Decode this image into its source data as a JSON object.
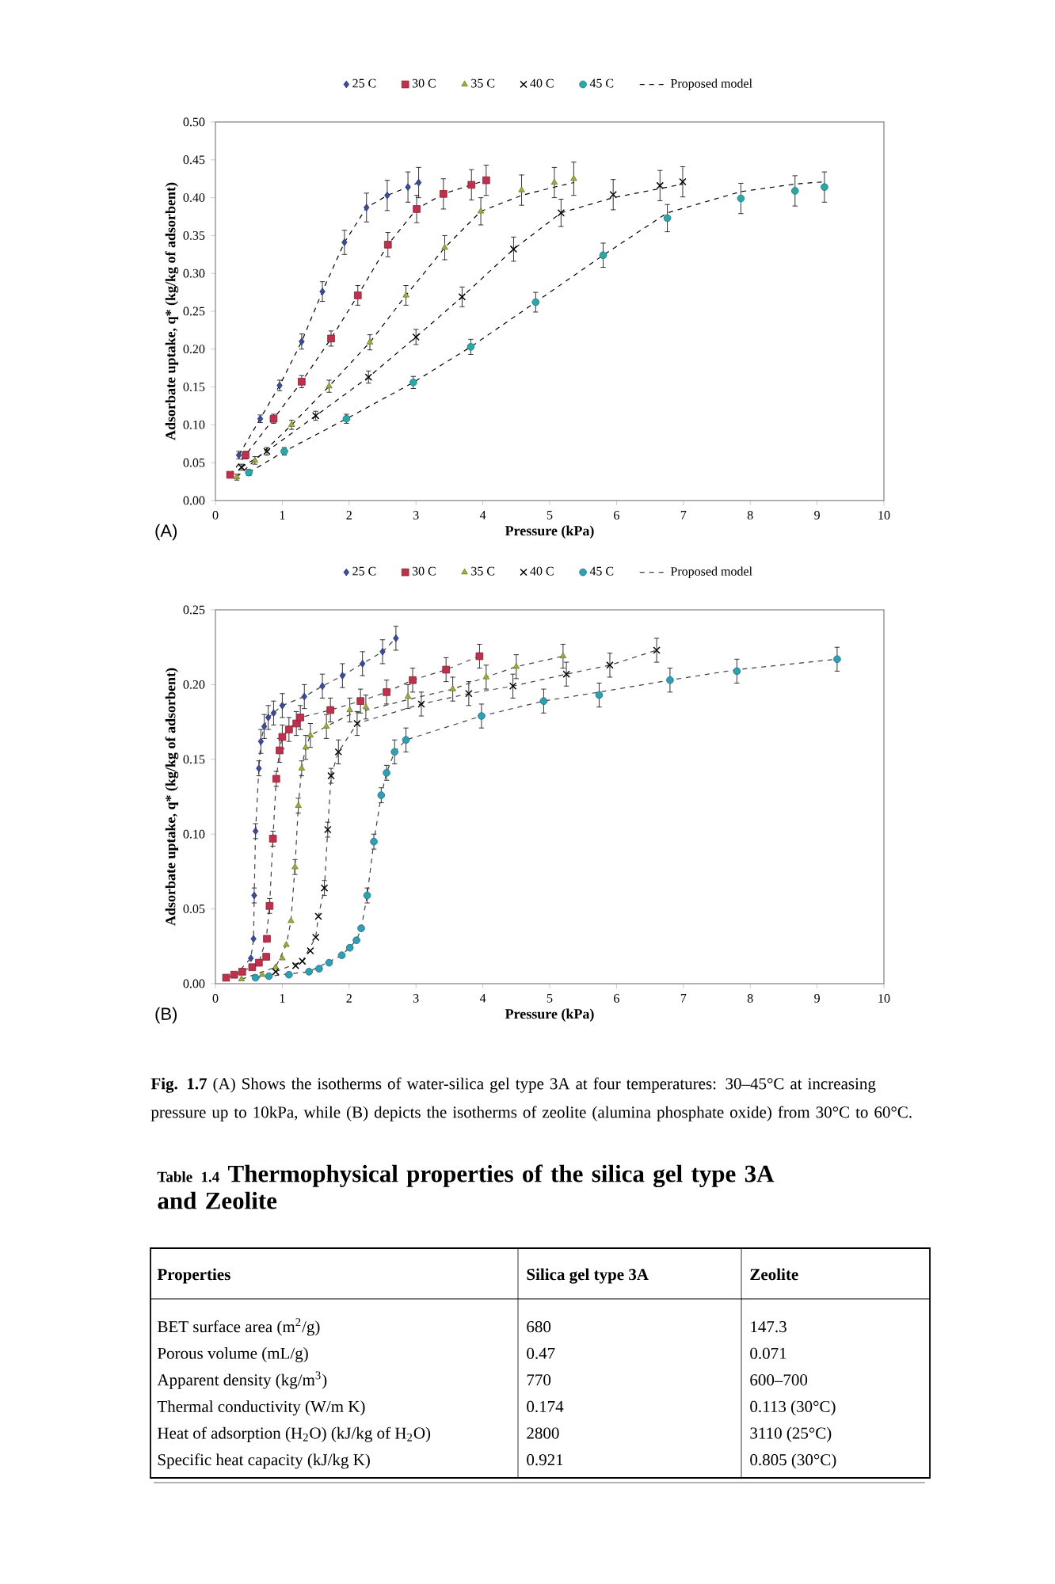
{
  "chart_data": [
    {
      "type": "scatter",
      "xlabel": "Pressure (kPa)",
      "ylabel": "Adsorbate uptake, q* (kg/kg of adsorbent)",
      "xlim": [
        0,
        10
      ],
      "ylim": [
        0,
        0.5
      ],
      "xticks": [
        0,
        1,
        2,
        3,
        4,
        5,
        6,
        7,
        8,
        9,
        10
      ],
      "yticks": [
        {
          "value": 0,
          "label": "0.00"
        },
        {
          "value": 0.05,
          "label": "0.05"
        },
        {
          "value": 0.1,
          "label": "0.10"
        },
        {
          "value": 0.15,
          "label": "0.15"
        },
        {
          "value": 0.2,
          "label": "0.20"
        },
        {
          "value": 0.25,
          "label": "0.25"
        },
        {
          "value": 0.3,
          "label": "0.30"
        },
        {
          "value": 0.35,
          "label": "0.35"
        },
        {
          "value": 0.4,
          "label": "0.40"
        },
        {
          "value": 0.45,
          "label": "0.45"
        },
        {
          "value": 0.5,
          "label": "0.50"
        }
      ],
      "legend": "top",
      "annotations": [
        "(A)"
      ],
      "series": [
        {
          "name": "25 C",
          "type": "scatter",
          "color": "#3b4a9c",
          "marker": "diamond",
          "x": [
            0.35,
            0.67,
            0.96,
            1.29,
            1.6,
            1.93,
            2.26,
            2.57,
            2.88,
            3.04
          ],
          "values": [
            0.06,
            0.108,
            0.152,
            0.21,
            0.276,
            0.341,
            0.387,
            0.403,
            0.414,
            0.42
          ],
          "errors": [
            0.005,
            0.005,
            0.007,
            0.01,
            0.013,
            0.016,
            0.019,
            0.02,
            0.02,
            0.02
          ]
        },
        {
          "name": "30 C",
          "type": "scatter",
          "color": "#c0304a",
          "marker": "square",
          "x": [
            0.22,
            0.45,
            0.87,
            1.29,
            1.73,
            2.13,
            2.58,
            3.01,
            3.41,
            3.83,
            4.05
          ],
          "values": [
            0.034,
            0.06,
            0.108,
            0.157,
            0.214,
            0.271,
            0.338,
            0.385,
            0.405,
            0.417,
            0.423
          ],
          "errors": [
            null,
            0.005,
            0.006,
            0.008,
            0.01,
            0.013,
            0.016,
            0.018,
            0.02,
            0.02,
            0.02
          ]
        },
        {
          "name": "35 C",
          "type": "scatter",
          "color": "#9aae3e",
          "marker": "triangle",
          "x": [
            0.32,
            0.59,
            1.14,
            1.7,
            2.31,
            2.85,
            3.43,
            3.97,
            4.58,
            5.07,
            5.36
          ],
          "values": [
            0.031,
            0.053,
            0.1,
            0.151,
            0.209,
            0.271,
            0.334,
            0.382,
            0.41,
            0.42,
            0.425
          ],
          "errors": [
            0.004,
            0.005,
            0.006,
            0.008,
            0.01,
            0.013,
            0.016,
            0.018,
            0.02,
            0.02,
            0.022
          ]
        },
        {
          "name": "40 C",
          "type": "scatter",
          "color": "#000000",
          "marker": "cross",
          "x": [
            0.39,
            0.77,
            1.5,
            2.29,
            3.0,
            3.69,
            4.46,
            5.17,
            5.95,
            6.65,
            6.99
          ],
          "values": [
            0.044,
            0.065,
            0.112,
            0.163,
            0.216,
            0.269,
            0.332,
            0.38,
            0.404,
            0.416,
            0.421
          ],
          "errors": [
            0.004,
            0.005,
            0.006,
            0.008,
            0.01,
            0.013,
            0.016,
            0.018,
            0.02,
            0.02,
            0.02
          ]
        },
        {
          "name": "45 C",
          "type": "scatter",
          "color": "#2aa8a8",
          "marker": "circle",
          "x": [
            0.5,
            1.03,
            1.96,
            2.96,
            3.82,
            4.79,
            5.8,
            6.76,
            7.86,
            8.67,
            9.11
          ],
          "values": [
            0.037,
            0.065,
            0.108,
            0.156,
            0.203,
            0.262,
            0.324,
            0.373,
            0.399,
            0.409,
            0.414
          ],
          "errors": [
            0.004,
            0.005,
            0.006,
            0.008,
            0.01,
            0.013,
            0.016,
            0.018,
            0.02,
            0.02,
            0.02
          ]
        },
        {
          "name": "Proposed model",
          "type": "line",
          "color": "#000000",
          "marker": "none",
          "line_style": "dashed",
          "x": [
            0.35,
            0.67,
            0.96,
            1.29,
            1.6,
            1.93,
            2.26,
            2.57,
            2.88,
            3.04
          ],
          "values": [
            0.06,
            0.108,
            0.152,
            0.21,
            0.276,
            0.341,
            0.387,
            0.403,
            0.414,
            0.42
          ]
        },
        {
          "type": "line",
          "color": "#000000",
          "marker": "none",
          "line_style": "dashed",
          "x": [
            0.22,
            0.45,
            0.87,
            1.29,
            1.73,
            2.13,
            2.58,
            3.01,
            3.41,
            3.83,
            4.05
          ],
          "values": [
            0.034,
            0.06,
            0.108,
            0.157,
            0.214,
            0.271,
            0.338,
            0.385,
            0.405,
            0.417,
            0.423
          ]
        },
        {
          "type": "line",
          "color": "#000000",
          "marker": "none",
          "line_style": "dashed",
          "x": [
            0.32,
            0.59,
            1.14,
            1.7,
            2.31,
            2.85,
            3.43,
            3.97,
            4.58,
            5.07,
            5.36
          ],
          "values": [
            0.031,
            0.053,
            0.1,
            0.151,
            0.209,
            0.271,
            0.334,
            0.382,
            0.403,
            0.414,
            0.42
          ]
        },
        {
          "type": "line",
          "color": "#000000",
          "marker": "none",
          "line_style": "dashed",
          "x": [
            0.39,
            0.77,
            1.5,
            2.29,
            3.0,
            3.69,
            4.46,
            5.17,
            5.95,
            6.65,
            6.99
          ],
          "values": [
            0.044,
            0.065,
            0.112,
            0.163,
            0.216,
            0.269,
            0.332,
            0.38,
            0.4,
            0.412,
            0.418
          ]
        },
        {
          "type": "line",
          "color": "#000000",
          "marker": "none",
          "line_style": "dashed",
          "x": [
            0.5,
            1.03,
            1.96,
            2.96,
            3.82,
            4.79,
            5.8,
            6.76,
            7.86,
            8.67,
            9.11
          ],
          "values": [
            0.037,
            0.065,
            0.108,
            0.156,
            0.203,
            0.262,
            0.324,
            0.38,
            0.408,
            0.418,
            0.421
          ]
        }
      ]
    },
    {
      "type": "scatter",
      "xlabel": "Pressure (kPa)",
      "ylabel": "Adsorbate uptake, q* (kg/kg of adsorbent)",
      "xlim": [
        0,
        10
      ],
      "ylim": [
        0,
        0.25
      ],
      "xticks": [
        0,
        1,
        2,
        3,
        4,
        5,
        6,
        7,
        8,
        9,
        10
      ],
      "yticks": [
        {
          "value": 0,
          "label": "0.00"
        },
        {
          "value": 0.05,
          "label": "0.05"
        },
        {
          "value": 0.1,
          "label": "0.10"
        },
        {
          "value": 0.15,
          "label": "0.15"
        },
        {
          "value": 0.2,
          "label": "0.20"
        },
        {
          "value": 0.25,
          "label": "0.25"
        }
      ],
      "legend": "top",
      "annotations": [
        "(B)",
        "**Fig. 1.7** (A) Shows the isotherms of water-silica gel type 3A at four temperatures: 30–45°C at increasing pressure up to 10kPa, while (B) depicts the isotherms of zeolite (alumina phosphate oxide) from 30°C to 60°C."
      ],
      "series": [
        {
          "name": "25 C",
          "type": "scatter",
          "color": "#3b4a9c",
          "marker": "diamond",
          "x": [
            0.53,
            0.57,
            0.58,
            0.6,
            0.65,
            0.68,
            0.73,
            0.79,
            0.87,
            1.0,
            1.33,
            1.6,
            1.9,
            2.2,
            2.5,
            2.7
          ],
          "values": [
            0.017,
            0.03,
            0.059,
            0.102,
            0.144,
            0.162,
            0.172,
            0.178,
            0.181,
            0.186,
            0.192,
            0.199,
            0.206,
            0.214,
            0.222,
            0.231
          ],
          "errors": [
            null,
            null,
            0.005,
            0.005,
            0.005,
            0.008,
            0.008,
            0.008,
            0.008,
            0.008,
            0.008,
            0.008,
            0.008,
            0.008,
            0.008,
            0.008
          ]
        },
        {
          "name": "30 C",
          "type": "scatter",
          "color": "#c0304a",
          "marker": "square",
          "x": [
            0.16,
            0.28,
            0.4,
            0.55,
            0.65,
            0.76,
            0.77,
            0.81,
            0.86,
            0.91,
            0.96,
            1.0,
            1.1,
            1.21,
            1.27,
            1.72,
            2.17,
            2.56,
            2.95,
            3.45,
            3.95
          ],
          "values": [
            0.004,
            0.006,
            0.008,
            0.011,
            0.014,
            0.018,
            0.03,
            0.052,
            0.097,
            0.137,
            0.156,
            0.165,
            0.17,
            0.174,
            0.178,
            0.183,
            0.189,
            0.195,
            0.203,
            0.21,
            0.219
          ],
          "errors": [
            null,
            null,
            null,
            null,
            null,
            null,
            null,
            0.005,
            0.005,
            0.005,
            0.008,
            0.008,
            0.008,
            0.008,
            0.008,
            0.008,
            0.008,
            0.008,
            0.008,
            0.008,
            0.008
          ]
        },
        {
          "name": "35 C",
          "type": "scatter",
          "color": "#9aae3e",
          "marker": "triangle",
          "x": [
            0.39,
            0.7,
            0.9,
            1.0,
            1.06,
            1.13,
            1.19,
            1.24,
            1.29,
            1.35,
            1.42,
            1.66,
            2.01,
            2.25,
            2.88,
            3.55,
            4.05,
            4.5,
            5.2
          ],
          "values": [
            0.003,
            0.006,
            0.011,
            0.017,
            0.026,
            0.042,
            0.078,
            0.119,
            0.144,
            0.158,
            0.166,
            0.172,
            0.183,
            0.185,
            0.192,
            0.197,
            0.205,
            0.212,
            0.219
          ],
          "errors": [
            null,
            null,
            null,
            null,
            null,
            null,
            0.005,
            0.005,
            0.005,
            0.008,
            0.008,
            0.008,
            0.008,
            0.008,
            0.008,
            0.008,
            0.008,
            0.008,
            0.008
          ]
        },
        {
          "name": "40 C",
          "type": "scatter",
          "color": "#000000",
          "marker": "cross",
          "x": [
            0.9,
            1.2,
            1.3,
            1.42,
            1.5,
            1.54,
            1.63,
            1.68,
            1.73,
            1.84,
            2.12,
            3.08,
            3.79,
            4.45,
            5.25,
            5.9,
            6.6
          ],
          "values": [
            0.008,
            0.012,
            0.015,
            0.022,
            0.031,
            0.045,
            0.064,
            0.103,
            0.139,
            0.155,
            0.174,
            0.187,
            0.194,
            0.199,
            0.207,
            0.213,
            0.223
          ],
          "errors": [
            null,
            null,
            null,
            null,
            null,
            null,
            0.005,
            0.005,
            0.005,
            0.008,
            0.008,
            0.008,
            0.008,
            0.008,
            0.008,
            0.008,
            0.008
          ]
        },
        {
          "name": "45 C",
          "type": "scatter",
          "color": "#2e9fb5",
          "marker": "circle",
          "x": [
            0.6,
            0.8,
            1.1,
            1.4,
            1.55,
            1.7,
            1.89,
            2.01,
            2.11,
            2.18,
            2.27,
            2.37,
            2.48,
            2.56,
            2.68,
            2.85,
            3.98,
            4.91,
            5.74,
            6.8,
            7.8,
            9.3
          ],
          "values": [
            0.004,
            0.005,
            0.006,
            0.008,
            0.01,
            0.014,
            0.019,
            0.024,
            0.029,
            0.037,
            0.059,
            0.095,
            0.126,
            0.141,
            0.155,
            0.163,
            0.179,
            0.189,
            0.193,
            0.203,
            0.209,
            0.217
          ],
          "errors": [
            null,
            null,
            null,
            null,
            null,
            null,
            null,
            null,
            null,
            null,
            0.005,
            0.005,
            0.005,
            0.005,
            0.008,
            0.008,
            0.008,
            0.008,
            0.008,
            0.008,
            0.008,
            0.008
          ]
        },
        {
          "name": "Proposed model",
          "type": "line",
          "color": "#404040",
          "marker": "none",
          "line_style": "dashed",
          "x": [
            0.28,
            0.53,
            0.57,
            0.58,
            0.6,
            0.65,
            0.68,
            0.73,
            0.79,
            0.87,
            1.0,
            1.33,
            1.6,
            1.9,
            2.2,
            2.5,
            2.7
          ],
          "values": [
            0.005,
            0.017,
            0.03,
            0.059,
            0.102,
            0.144,
            0.162,
            0.172,
            0.178,
            0.181,
            0.186,
            0.192,
            0.199,
            0.206,
            0.214,
            0.222,
            0.231
          ]
        },
        {
          "type": "line",
          "color": "#404040",
          "marker": "none",
          "line_style": "dashed",
          "x": [
            0.16,
            0.4,
            0.65,
            0.76,
            0.81,
            0.86,
            0.91,
            0.96,
            1.0,
            1.1,
            1.27,
            1.72,
            2.17,
            2.56,
            2.95,
            3.45,
            3.95
          ],
          "values": [
            0.004,
            0.008,
            0.014,
            0.03,
            0.052,
            0.097,
            0.137,
            0.156,
            0.165,
            0.17,
            0.178,
            0.183,
            0.189,
            0.195,
            0.203,
            0.21,
            0.219
          ]
        },
        {
          "type": "line",
          "color": "#404040",
          "marker": "none",
          "line_style": "dashed",
          "x": [
            0.39,
            0.9,
            1.06,
            1.13,
            1.19,
            1.24,
            1.29,
            1.35,
            1.42,
            1.66,
            2.01,
            2.88,
            3.55,
            4.05,
            4.5,
            5.2
          ],
          "values": [
            0.003,
            0.011,
            0.026,
            0.042,
            0.078,
            0.119,
            0.144,
            0.158,
            0.166,
            0.172,
            0.18,
            0.19,
            0.197,
            0.205,
            0.212,
            0.219
          ]
        },
        {
          "type": "line",
          "color": "#404040",
          "marker": "none",
          "line_style": "dashed",
          "x": [
            0.9,
            1.3,
            1.5,
            1.54,
            1.63,
            1.68,
            1.73,
            1.84,
            2.12,
            3.08,
            3.79,
            4.45,
            5.25,
            5.9,
            6.6
          ],
          "values": [
            0.008,
            0.015,
            0.031,
            0.045,
            0.064,
            0.103,
            0.139,
            0.155,
            0.174,
            0.187,
            0.194,
            0.199,
            0.207,
            0.213,
            0.223
          ]
        },
        {
          "type": "line",
          "color": "#404040",
          "marker": "none",
          "line_style": "dashed",
          "x": [
            0.6,
            1.4,
            1.89,
            2.11,
            2.18,
            2.27,
            2.37,
            2.48,
            2.56,
            2.68,
            2.85,
            3.98,
            4.91,
            5.74,
            6.8,
            7.8,
            9.3
          ],
          "values": [
            0.004,
            0.008,
            0.019,
            0.029,
            0.037,
            0.059,
            0.095,
            0.126,
            0.141,
            0.155,
            0.163,
            0.179,
            0.189,
            0.195,
            0.203,
            0.21,
            0.217
          ]
        }
      ]
    },
    {
      "type": "other",
      "title": "Thermophysical properties of the silica gel type 3A and Zeolite",
      "annotations": [
        "Table 1.4",
        "Properties",
        "Silica gel type 3A",
        "Zeolite",
        "BET surface area (m$^{2}$/g)",
        "680",
        "147.3",
        "Porous volume (mL/g)",
        "0.47",
        "0.071",
        "Apparent density (kg/m$^{3}$)",
        "770",
        "600–700",
        "Thermal conductivity (W/m K)",
        "0.174",
        "0.113 (30°C)",
        "Heat of adsorption (H$_{2}$O) (kJ/kg of H$_{2}$O)",
        "2800",
        "3110 (25°C)",
        "Specific heat capacity (kJ/kg K)",
        "0.921",
        "0.805 (30°C)"
      ]
    }
  ]
}
